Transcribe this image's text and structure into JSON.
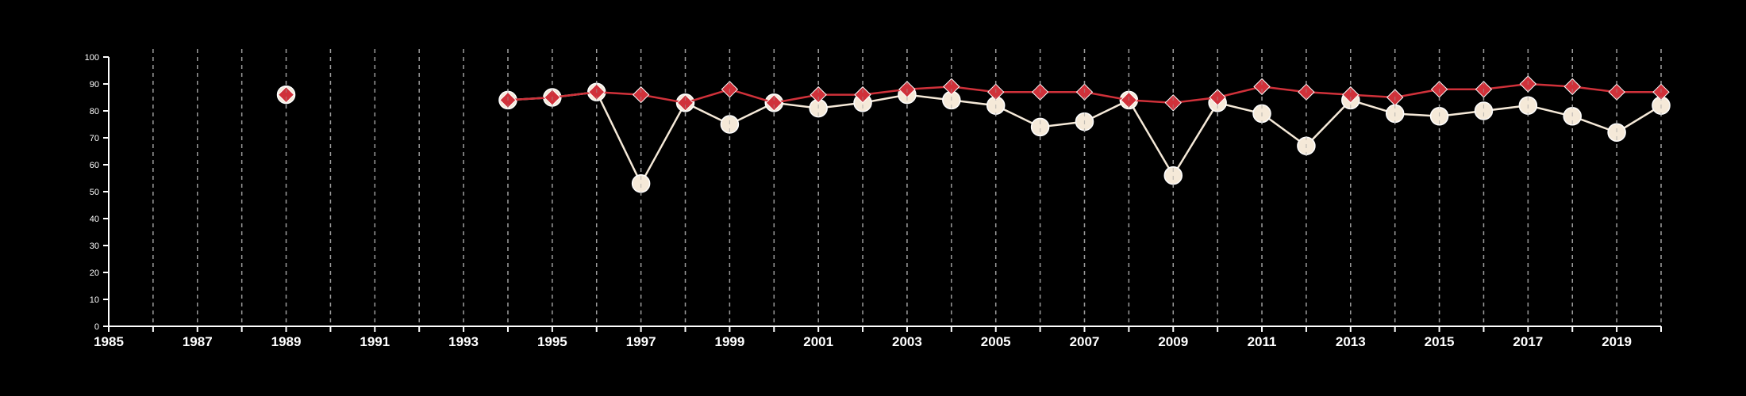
{
  "chart_data": {
    "type": "line",
    "title": "",
    "xlabel": "",
    "ylabel": "",
    "xlim": [
      1985,
      2020
    ],
    "ylim": [
      0,
      100
    ],
    "x_ticks": [
      1985,
      1987,
      1989,
      1991,
      1993,
      1995,
      1997,
      1999,
      2001,
      2003,
      2005,
      2007,
      2009,
      2011,
      2013,
      2015,
      2017,
      2019
    ],
    "y_ticks": [
      0,
      10,
      20,
      30,
      40,
      50,
      60,
      70,
      80,
      90,
      100
    ],
    "grid": "vertical dashed",
    "legend": "none",
    "series": [
      {
        "marker": "circle",
        "color": "#f5e9d8",
        "x": [
          1989,
          1994,
          1995,
          1996,
          1997,
          1998,
          1999,
          2000,
          2001,
          2002,
          2003,
          2004,
          2005,
          2006,
          2007,
          2008,
          2009,
          2010,
          2011,
          2012,
          2013,
          2014,
          2015,
          2016,
          2017,
          2018,
          2019,
          2020
        ],
        "values": [
          86,
          84,
          85,
          87,
          53,
          83,
          75,
          83,
          81,
          83,
          86,
          84,
          82,
          74,
          76,
          84,
          56,
          83,
          79,
          67,
          84,
          79,
          78,
          80,
          82,
          78,
          72,
          82
        ]
      },
      {
        "marker": "diamond",
        "color": "#d0313a",
        "x": [
          1989,
          1994,
          1995,
          1996,
          1997,
          1998,
          1999,
          2000,
          2001,
          2002,
          2003,
          2004,
          2005,
          2006,
          2007,
          2008,
          2009,
          2010,
          2011,
          2012,
          2013,
          2014,
          2015,
          2016,
          2017,
          2018,
          2019,
          2020
        ],
        "values": [
          86,
          84,
          85,
          87,
          86,
          83,
          88,
          83,
          86,
          86,
          88,
          89,
          87,
          87,
          87,
          84,
          83,
          85,
          89,
          87,
          86,
          85,
          88,
          88,
          90,
          89,
          87,
          87
        ]
      }
    ]
  }
}
